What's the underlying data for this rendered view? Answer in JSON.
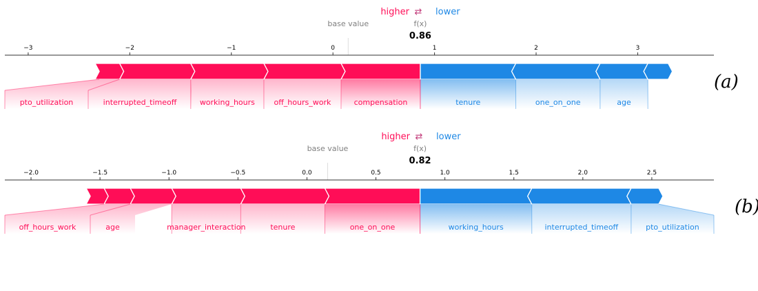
{
  "legend": {
    "higher": "higher",
    "arrow": "⇄",
    "lower": "lower"
  },
  "colors": {
    "positive": "#FF0D57",
    "negative": "#1E88E5",
    "axis": "#333333",
    "muted": "#808080"
  },
  "chart_data": [
    {
      "type": "force",
      "panel_label": "(a)",
      "base_value_label": "base value",
      "fx_label": "f(x)",
      "fx_value": 0.86,
      "fx_text": "0.86",
      "base_value": 0.15,
      "xlim": [
        -3.23,
        3.75
      ],
      "ticks": [
        -3,
        -2,
        -1,
        0,
        1,
        2,
        3
      ],
      "tick_labels": [
        "−3",
        "−2",
        "−1",
        "0",
        "1",
        "2",
        "3"
      ],
      "higher_bound": -2.3,
      "lower_bound": 3.3,
      "increase": [
        {
          "feature": "pto_utilization",
          "from": -2.3,
          "to": -2.1
        },
        {
          "feature": "interrupted_timeoff",
          "from": -2.1,
          "to": -1.4
        },
        {
          "feature": "working_hours",
          "from": -1.4,
          "to": -0.68
        },
        {
          "feature": "off_hours_work",
          "from": -0.68,
          "to": 0.08
        },
        {
          "feature": "compensation",
          "from": 0.08,
          "to": 0.86
        }
      ],
      "decrease": [
        {
          "feature": "tenure",
          "from": 0.86,
          "to": 1.8
        },
        {
          "feature": "one_on_one",
          "from": 1.8,
          "to": 2.63
        },
        {
          "feature": "age",
          "from": 2.63,
          "to": 3.1
        },
        {
          "feature": "",
          "from": 3.1,
          "to": 3.3
        }
      ]
    },
    {
      "type": "force",
      "panel_label": "(b)",
      "base_value_label": "base value",
      "fx_label": "f(x)",
      "fx_value": 0.82,
      "fx_text": "0.82",
      "base_value": 0.15,
      "xlim": [
        -2.19,
        2.95
      ],
      "ticks": [
        -2.0,
        -1.5,
        -1.0,
        -0.5,
        0.0,
        0.5,
        1.0,
        1.5,
        2.0,
        2.5
      ],
      "tick_labels": [
        "−2.0",
        "−1.5",
        "−1.0",
        "−0.5",
        "0.0",
        "0.5",
        "1.0",
        "1.5",
        "2.0",
        "2.5"
      ],
      "higher_bound": -1.57,
      "lower_bound": 2.55,
      "increase": [
        {
          "feature": "",
          "from": -1.57,
          "to": -1.47
        },
        {
          "feature": "off_hours_work",
          "from": -1.47,
          "to": -1.28
        },
        {
          "feature": "age",
          "from": -1.28,
          "to": -0.98
        },
        {
          "feature": "manager_interaction",
          "from": -0.98,
          "to": -0.48
        },
        {
          "feature": "tenure",
          "from": -0.48,
          "to": 0.13
        },
        {
          "feature": "one_on_one",
          "from": 0.13,
          "to": 0.82
        }
      ],
      "decrease": [
        {
          "feature": "working_hours",
          "from": 0.82,
          "to": 1.63
        },
        {
          "feature": "interrupted_timeoff",
          "from": 1.63,
          "to": 2.35
        },
        {
          "feature": "pto_utilization",
          "from": 2.35,
          "to": 2.55
        }
      ]
    }
  ]
}
